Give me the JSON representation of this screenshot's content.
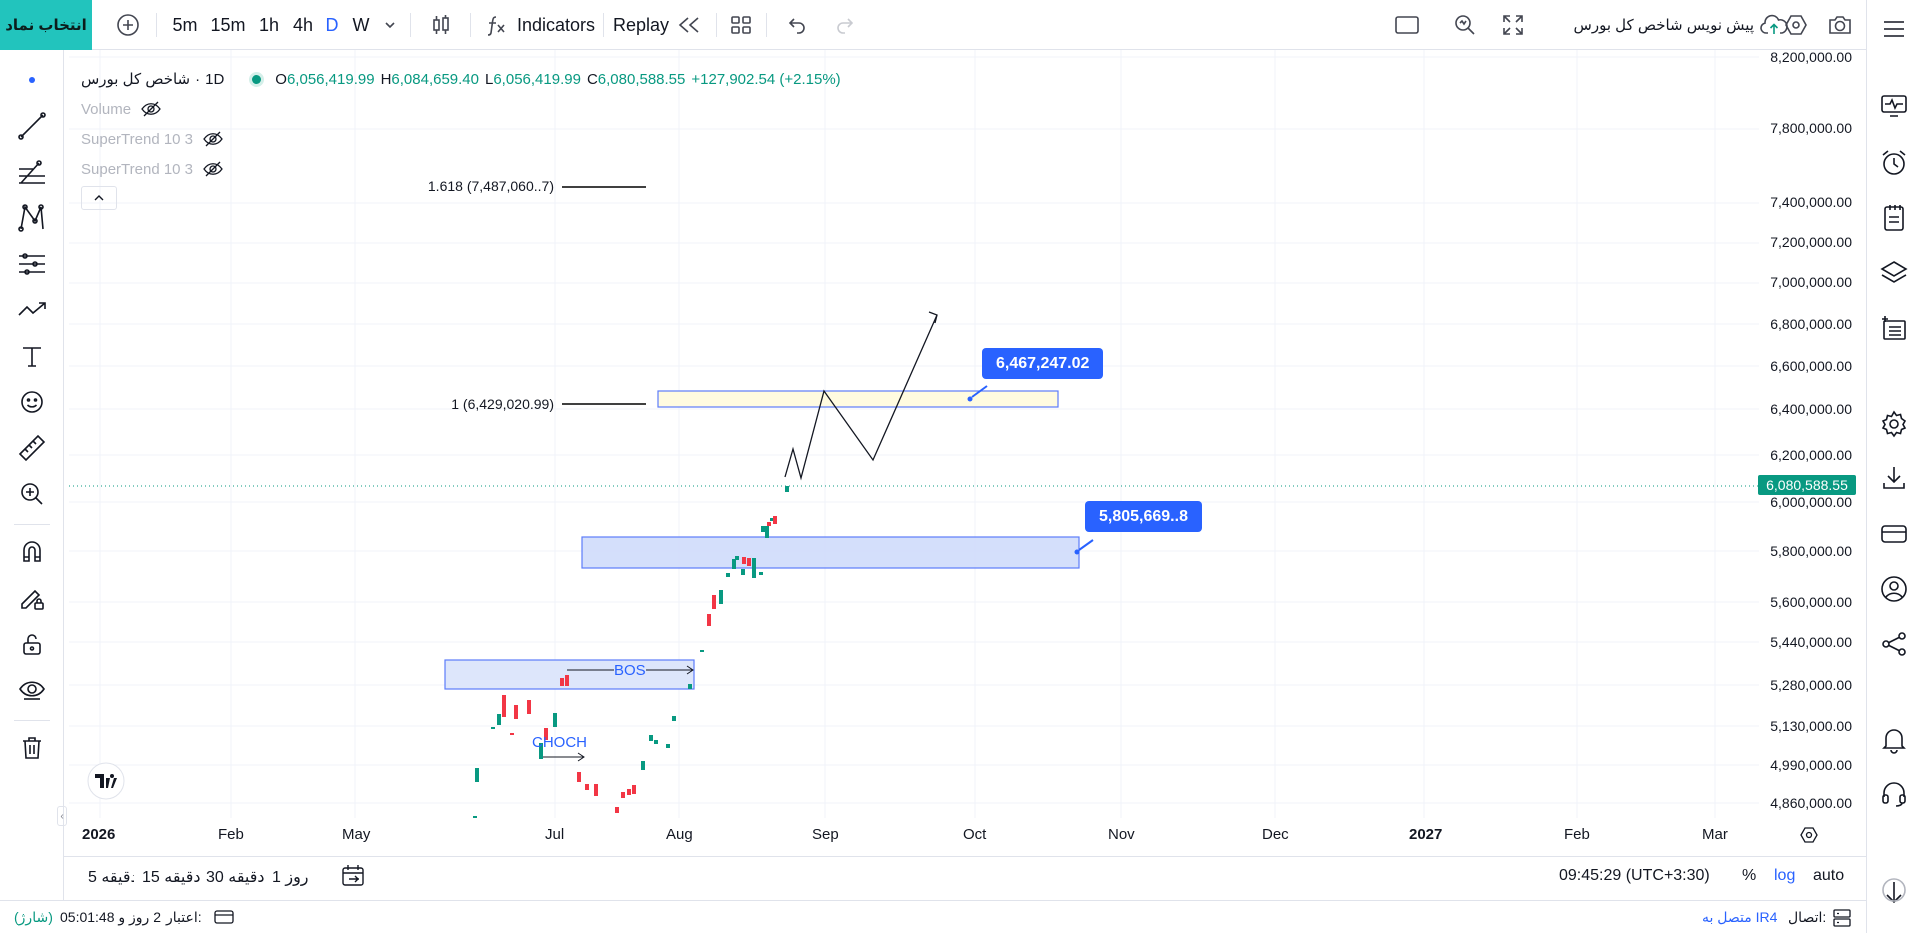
{
  "topbar": {
    "symbol_button": "انتخاب نماد",
    "timeframes": [
      "5m",
      "15m",
      "1h",
      "4h",
      "D",
      "W"
    ],
    "active_timeframe": "D",
    "indicators_label": "Indicators",
    "replay_label": "Replay",
    "draft_label": "پیش نویس شاخص کل بورس"
  },
  "legend": {
    "symbol": "شاخص کل بورس",
    "interval": "1D",
    "open_label": "O",
    "open": "6,056,419.99",
    "high_label": "H",
    "high": "6,084,659.40",
    "low_label": "L",
    "low": "6,056,419.99",
    "close_label": "C",
    "close": "6,080,588.55",
    "change": "+127,902.54 (+2.15%)",
    "indicators": [
      "Volume",
      "SuperTrend 10 3",
      "SuperTrend 10 3"
    ]
  },
  "price_axis": [
    "8,200,000.00",
    "7,800,000.00",
    "7,400,000.00",
    "7,200,000.00",
    "7,000,000.00",
    "6,800,000.00",
    "6,600,000.00",
    "6,400,000.00",
    "6,200,000.00",
    "6,000,000.00",
    "5,800,000.00",
    "5,600,000.00",
    "5,440,000.00",
    "5,280,000.00",
    "5,130,000.00",
    "4,990,000.00",
    "4,860,000.00"
  ],
  "last_price": "6,080,588.55",
  "time_axis": [
    "2026",
    "Feb",
    "May",
    "Jul",
    "Aug",
    "Sep",
    "Oct",
    "Nov",
    "Dec",
    "2027",
    "Feb",
    "Mar"
  ],
  "annotations": {
    "fib_1618": "1.618 (7,487,060..7)",
    "fib_1": "1 (6,429,020.99)",
    "target_price": "6,467,247.02",
    "zone_price": "5,805,669..8",
    "bos": "BOS",
    "choch": "CHOCH"
  },
  "bottombar": {
    "ranges": [
      "روز 1",
      "دقیقه 30",
      "دقیقه 15",
      "دقیقه 5"
    ],
    "clock": "09:45:29 (UTC+3:30)",
    "percent": "%",
    "log": "log",
    "auto": "auto"
  },
  "statusbar": {
    "connection_label": "اتصال:",
    "connection_value": "متصل به IR4",
    "credit_label": "اعتبار:",
    "credit_value": "2 روز و 05:01:48",
    "credit_status": "(شارژ)"
  },
  "colors": {
    "accent": "#2962ff",
    "up": "#089981",
    "down": "#f23645",
    "symbol_button": "#22c4bd"
  }
}
